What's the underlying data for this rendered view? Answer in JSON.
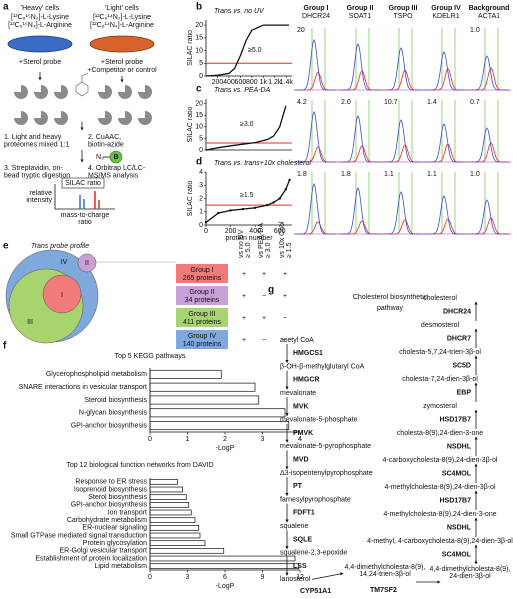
{
  "panel_labels": [
    "a",
    "b",
    "c",
    "d",
    "e",
    "f",
    "g"
  ],
  "panel_a": {
    "heavy": {
      "title": "'Heavy' cells",
      "media": [
        "[¹³C₆¹⁵N₂]-L-Lysine",
        "[¹³C₆¹⁵N₄]-L-Arginine"
      ],
      "treatment": [
        "+Sterol probe"
      ]
    },
    "light": {
      "title": "'Light' cells",
      "media": [
        "[¹²C₆¹⁴N₂]-L-Lysine",
        "[¹²C₆¹⁴N₄]-L-Arginine"
      ],
      "treatment": [
        "+Sterol probe",
        "+Competitor or control"
      ]
    },
    "steps": [
      [
        "1. Light and heavy",
        "proteomes mixed 1:1"
      ],
      [
        "2. CuAAC,",
        "biotin-azide"
      ],
      [
        "3. Streptavidin, on-",
        "bead tryptic digestion"
      ],
      [
        "4. Orbitrap LC/LC-",
        "MS/MS analysis"
      ]
    ],
    "azide": "N₃",
    "biotin": "B",
    "spectrum": {
      "y_label": [
        "relative",
        "intensity"
      ],
      "ratio_label": "SILAC ratio",
      "x_label": [
        "mass-to-charge",
        "ratio"
      ]
    }
  },
  "chart_data": [
    {
      "type": "line",
      "title": "Trans vs. no UV",
      "y_label": "SILAC ratio",
      "annotation": "≥5.0",
      "threshold": 5,
      "threshold_color": "#e8262b",
      "color": "#111111",
      "x": [
        0,
        200,
        400,
        500,
        600,
        700,
        800,
        1000,
        1200,
        1450
      ],
      "values": [
        0,
        0.3,
        1,
        3,
        8,
        14,
        18,
        20,
        20,
        20
      ],
      "xlim": [
        0,
        1500
      ],
      "xticks": [
        200,
        400,
        600,
        800,
        {
          "value": 1000,
          "label": "1k"
        },
        {
          "value": 1200,
          "label": "1.2k"
        },
        {
          "value": 1400,
          "label": "1.4k"
        }
      ],
      "ylim": [
        0,
        22
      ],
      "yticks": [
        0,
        5,
        10,
        15,
        20
      ]
    },
    {
      "type": "line",
      "title": "Trans vs. PEA-DA",
      "y_label": "SILAC ratio",
      "annotation": "≥3.0",
      "threshold": 3,
      "threshold_color": "#e8262b",
      "color": "#111111",
      "x": [
        0,
        100,
        200,
        300,
        400,
        500,
        550,
        600,
        650
      ],
      "values": [
        0,
        1,
        1.8,
        2.5,
        3.2,
        4.5,
        6,
        10,
        19
      ],
      "xlim": [
        0,
        700
      ],
      "ylim": [
        0,
        22
      ],
      "yticks": [
        0,
        5,
        10,
        15,
        20
      ]
    },
    {
      "type": "line",
      "title": "Trans vs. trans+10x cholesterol",
      "y_label": "SILAC ratio",
      "x_label": "protein number",
      "annotation": "≥1.5",
      "threshold": 1.5,
      "threshold_color": "#e8262b",
      "color": "#111111",
      "markers": true,
      "x": [
        0,
        100,
        200,
        300,
        400,
        500,
        550,
        600,
        650,
        680
      ],
      "values": [
        0.2,
        0.9,
        1.1,
        1.2,
        1.3,
        1.5,
        1.7,
        2,
        2.7,
        3.4
      ],
      "xlim": [
        0,
        700
      ],
      "xticks": [
        0,
        200,
        400,
        600
      ],
      "ylim": [
        0,
        4
      ],
      "yticks": [
        0,
        1,
        2,
        3,
        4
      ]
    },
    {
      "type": "bar",
      "title": "Top 5 KEGG pathways",
      "x_label": "-LogP",
      "color": "#ffffff",
      "categories": [
        "Glycerophospholipid metabolism",
        "SNARE interactions in vesicular transport",
        "Steroid biosynthesis",
        "N-glycan biosynthesis",
        "GPI-anchor biosynthesis"
      ],
      "values": [
        1.9,
        2.8,
        2.9,
        3.6,
        3.7
      ],
      "xlim": [
        0,
        4
      ],
      "xticks": [
        0,
        1,
        2,
        3,
        4
      ]
    },
    {
      "type": "bar",
      "title": "Top 12 biological function networks from DAVID",
      "x_label": "-LogP",
      "color": "#ffffff",
      "categories": [
        "Response to ER stress",
        "Isoprenoid biosynthesis",
        "Sterol biosynthesis",
        "GPI-anchor biosynthesis",
        "Ion transport",
        "Carbohydrate metabolism",
        "ER-nuclear signaling",
        "Small GTPase mediated signal transduction",
        "Protein glycosylation",
        "ER-Golgi vesicular transport",
        "Establishment of protein localization",
        "Lipid metabolism"
      ],
      "values": [
        2.2,
        2.6,
        2.9,
        3.1,
        3.3,
        3.6,
        3.9,
        4.0,
        4.4,
        5.9,
        11.6,
        11.9
      ],
      "xlim": [
        0,
        12
      ],
      "xticks": [
        0,
        3,
        6,
        9,
        12
      ]
    }
  ],
  "spectra": {
    "groups": [
      {
        "group": "Group I",
        "protein": "DHCR24"
      },
      {
        "group": "Group II",
        "protein": "SOAT1"
      },
      {
        "group": "Group III",
        "protein": "TSPO"
      },
      {
        "group": "Group IV",
        "protein": "KDELR1"
      },
      {
        "group": "Background",
        "protein": "ACTA1"
      }
    ],
    "ratios": [
      [
        "20",
        null,
        null,
        null,
        "1.0"
      ],
      [
        "4.2",
        "2.0",
        "10.7",
        "1.4",
        "0.7"
      ],
      [
        "1.8",
        "1.8",
        "1.1",
        "1.1",
        "1.0"
      ]
    ]
  },
  "venn": {
    "title": "Trans probe profile",
    "labels": [
      "IV",
      "II",
      "I",
      "III"
    ]
  },
  "groups_table": {
    "headers": [
      [
        "vs no UV",
        "≥ 5.0"
      ],
      [
        "vs PEA-DA",
        "≥ 3.0"
      ],
      [
        "vs 10x Chol",
        "≥ 1.5"
      ]
    ],
    "rows": [
      {
        "name": "Group I",
        "count": "265 proteins",
        "color": "#ef7b7b",
        "marks": [
          "+",
          "+",
          "+"
        ]
      },
      {
        "name": "Group II",
        "count": "34 proteins",
        "color": "#c9a0d8",
        "marks": [
          "+",
          "−",
          "+"
        ]
      },
      {
        "name": "Group III",
        "count": "411 proteins",
        "color": "#a8d46f",
        "marks": [
          "+",
          "+",
          "−"
        ]
      },
      {
        "name": "Group IV",
        "count": "140 proteins",
        "color": "#7fa8dc",
        "marks": [
          "+",
          "−",
          "−"
        ]
      }
    ]
  },
  "pathway": {
    "title": [
      "Cholesterol biosynthetic",
      "pathway"
    ],
    "left": [
      "acetyl CoA",
      {
        "name": "HMGCS1",
        "color": "#111111"
      },
      "β-OH-β-methylglutaryl CoA",
      {
        "name": "HMGCR",
        "color": "#e8262b"
      },
      "mevalonate",
      {
        "name": "MVK",
        "color": "#111111"
      },
      "mevalonate-5-phosphate",
      {
        "name": "PMVK",
        "color": "#111111"
      },
      "mevalonate-5-pyrophosphate",
      {
        "name": "MVD",
        "color": "#111111"
      },
      "Δ3-isopentenylpyrophosphate",
      {
        "name": "PT",
        "color": "#111111"
      },
      "farnesylpyrophosphate",
      {
        "name": "FDFT1",
        "color": "#e8262b"
      },
      "squalene",
      {
        "name": "SQLE",
        "color": "#e8262b"
      },
      "squalene-2,3-epoxide",
      {
        "name": "LSS",
        "color": "#3a6fc4"
      },
      "lanosterol"
    ],
    "side_enzyme": {
      "name": "CYP51A1",
      "color": "#9b3fb5"
    },
    "right": [
      "cholesterol",
      {
        "name": "DHCR24",
        "color": "#e8262b"
      },
      "desmosterol",
      {
        "name": "DHCR7",
        "color": "#3aaa35"
      },
      "cholesta-5,7,24-trien-3β-ol",
      {
        "name": "SC5D",
        "color": "#3a6fc4"
      },
      "cholesta-7,24-dien-3β-ol",
      {
        "name": "EBP",
        "color": "#3aaa35"
      },
      "zymosterol",
      {
        "name": "HSD17B7",
        "color": "#111111"
      },
      "cholesta-8(9),24-dien-3-one",
      {
        "name": "NSDHL",
        "color": "#3aaa35"
      },
      "4-carboxycholesta-8(9),24-dien-3β-ol",
      {
        "name": "SC4MOL",
        "color": "#e8262b"
      },
      "4-methylcholesta-8(9),24-dien-3β-ol",
      {
        "name": "HSD17B7",
        "color": "#111111"
      },
      "4-methylcholesta-8(9),24-dien-3-one",
      {
        "name": "NSDHL",
        "color": "#3aaa35"
      },
      "4-methyl, 4-carboxycholesta-8(9),24-dien-3β-ol",
      {
        "name": "SC4MOL",
        "color": "#e8262b"
      }
    ],
    "branch": {
      "intermediate": [
        "4,4-dimethylcholesta-8(9),",
        "14,24-trien-3β-ol"
      ],
      "enzyme": {
        "name": "TM7SF2",
        "color": "#111111"
      },
      "product": [
        "4,4-dimethylcholesta-8(9),",
        "24-dien-3β-ol"
      ]
    }
  }
}
